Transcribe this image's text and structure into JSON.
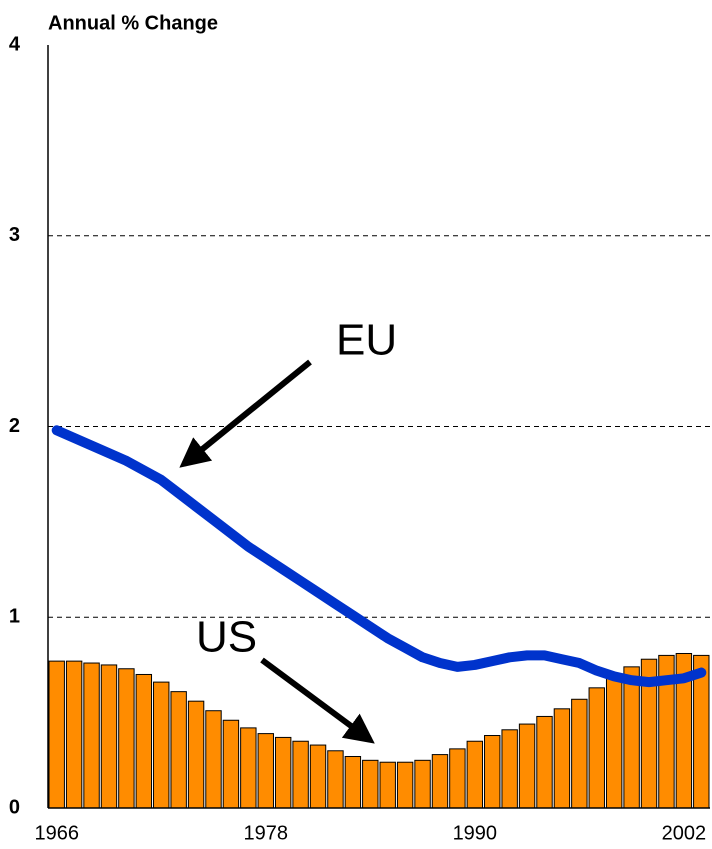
{
  "chart_data": {
    "type": "bar+line",
    "title": "Annual % Change",
    "categories": [
      "1966",
      null,
      null,
      null,
      null,
      null,
      null,
      null,
      null,
      null,
      null,
      null,
      "1978",
      null,
      null,
      null,
      null,
      null,
      null,
      null,
      null,
      null,
      null,
      null,
      "1990",
      null,
      null,
      null,
      null,
      null,
      null,
      null,
      null,
      null,
      null,
      null,
      "2002",
      null
    ],
    "series": [
      {
        "name": "US",
        "type": "bar",
        "color": "#ff8c00",
        "values": [
          0.77,
          0.77,
          0.76,
          0.75,
          0.73,
          0.7,
          0.66,
          0.61,
          0.56,
          0.51,
          0.46,
          0.42,
          0.39,
          0.37,
          0.35,
          0.33,
          0.3,
          0.27,
          0.25,
          0.24,
          0.24,
          0.25,
          0.28,
          0.31,
          0.35,
          0.38,
          0.41,
          0.44,
          0.48,
          0.52,
          0.57,
          0.63,
          0.68,
          0.74,
          0.78,
          0.8,
          0.81,
          0.8
        ]
      },
      {
        "name": "EU",
        "type": "line",
        "color": "#0033cc",
        "values": [
          1.98,
          1.94,
          1.9,
          1.86,
          1.82,
          1.77,
          1.72,
          1.65,
          1.58,
          1.51,
          1.44,
          1.37,
          1.31,
          1.25,
          1.19,
          1.13,
          1.07,
          1.01,
          0.95,
          0.89,
          0.84,
          0.79,
          0.76,
          0.74,
          0.75,
          0.77,
          0.79,
          0.8,
          0.8,
          0.78,
          0.76,
          0.72,
          0.69,
          0.67,
          0.66,
          0.67,
          0.68,
          0.71
        ]
      }
    ],
    "ylim": [
      0,
      4
    ],
    "yticks": [
      0,
      1,
      2,
      3,
      4
    ],
    "grid": true
  }
}
